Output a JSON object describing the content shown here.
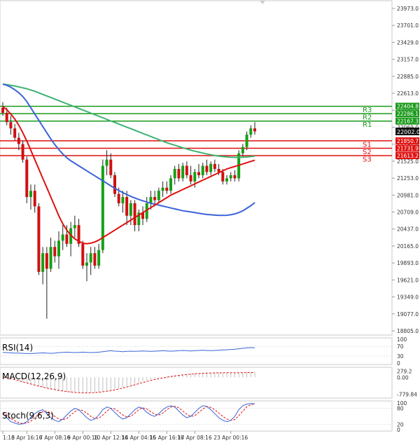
{
  "chart_data": {
    "type": "candlestick",
    "instrument_timeframe": "",
    "main": {
      "ylim": [
        18805,
        24150
      ],
      "ticks": [
        "23973.0",
        "23701.0",
        "23429.0",
        "23157.0",
        "22885.0",
        "22613.0",
        "22341.0",
        "22069.0",
        "21797.0",
        "21525.0",
        "21253.0",
        "20981.0",
        "20709.0",
        "20437.0",
        "20165.0",
        "19893.0",
        "19621.0",
        "19349.0",
        "19077.0",
        "18805.0"
      ],
      "current_price": "22002.0",
      "levels": [
        {
          "name": "R3",
          "value": 22404.8,
          "label": "22404.8",
          "color": "#1a9a1a"
        },
        {
          "name": "R2",
          "value": 22286.1,
          "label": "22286.1",
          "color": "#1a9a1a"
        },
        {
          "name": "R1",
          "value": 22167.3,
          "label": "22167.3",
          "color": "#1a9a1a"
        },
        {
          "name": "S1",
          "value": 21850.7,
          "label": "21850.7",
          "color": "#e01010"
        },
        {
          "name": "S2",
          "value": 21731.9,
          "label": "21731.9",
          "color": "#e01010"
        },
        {
          "name": "S3",
          "value": 21613.2,
          "label": "21613.2",
          "color": "#e01010"
        }
      ],
      "candles": [
        [
          22380,
          22470,
          22250,
          22300
        ],
        [
          22300,
          22380,
          22100,
          22150
        ],
        [
          22150,
          22250,
          21950,
          22050
        ],
        [
          22050,
          22120,
          21860,
          21900
        ],
        [
          21900,
          21980,
          21700,
          21800
        ],
        [
          21800,
          21850,
          21500,
          21550
        ],
        [
          21550,
          21600,
          20850,
          20950
        ],
        [
          20950,
          21150,
          20750,
          21050
        ],
        [
          21050,
          21150,
          20700,
          20800
        ],
        [
          20800,
          20850,
          19700,
          19750
        ],
        [
          19750,
          20150,
          19550,
          20050
        ],
        [
          20050,
          20150,
          19000,
          19800
        ],
        [
          19800,
          20300,
          19750,
          20150
        ],
        [
          20150,
          20250,
          19900,
          20000
        ],
        [
          20000,
          20400,
          19800,
          20250
        ],
        [
          20250,
          20500,
          20100,
          20350
        ],
        [
          20350,
          20500,
          20150,
          20200
        ],
        [
          20200,
          20550,
          20000,
          20450
        ],
        [
          20450,
          20650,
          20300,
          20500
        ],
        [
          20500,
          20600,
          20150,
          20200
        ],
        [
          20200,
          20250,
          19800,
          19850
        ],
        [
          19850,
          20050,
          19600,
          19900
        ],
        [
          19900,
          20150,
          19700,
          20050
        ],
        [
          20050,
          20150,
          19800,
          19850
        ],
        [
          19850,
          20200,
          19800,
          20100
        ],
        [
          20100,
          21550,
          20050,
          21450
        ],
        [
          21450,
          21700,
          21300,
          21550
        ],
        [
          21550,
          21650,
          21250,
          21300
        ],
        [
          21300,
          21350,
          20950,
          21000
        ],
        [
          21000,
          21100,
          20800,
          20850
        ],
        [
          20850,
          21050,
          20700,
          20950
        ],
        [
          20950,
          21050,
          20500,
          20650
        ],
        [
          20650,
          20900,
          20500,
          20850
        ],
        [
          20850,
          20900,
          20400,
          20500
        ],
        [
          20500,
          20750,
          20400,
          20700
        ],
        [
          20700,
          20800,
          20500,
          20600
        ],
        [
          20600,
          20950,
          20550,
          20850
        ],
        [
          20850,
          21050,
          20750,
          20950
        ],
        [
          20950,
          21050,
          20800,
          20900
        ],
        [
          20900,
          21100,
          20850,
          21050
        ],
        [
          21050,
          21200,
          20950,
          21100
        ],
        [
          21100,
          21200,
          21000,
          21050
        ],
        [
          21050,
          21300,
          21000,
          21250
        ],
        [
          21250,
          21450,
          21150,
          21400
        ],
        [
          21400,
          21480,
          21200,
          21250
        ],
        [
          21250,
          21500,
          21200,
          21450
        ],
        [
          21450,
          21520,
          21250,
          21300
        ],
        [
          21300,
          21450,
          21150,
          21200
        ],
        [
          21200,
          21400,
          21100,
          21350
        ],
        [
          21350,
          21480,
          21250,
          21300
        ],
        [
          21300,
          21500,
          21250,
          21450
        ],
        [
          21450,
          21550,
          21300,
          21350
        ],
        [
          21350,
          21520,
          21300,
          21480
        ],
        [
          21480,
          21550,
          21350,
          21400
        ],
        [
          21400,
          21480,
          21300,
          21350
        ],
        [
          21350,
          21400,
          21150,
          21200
        ],
        [
          21200,
          21300,
          21150,
          21250
        ],
        [
          21250,
          21350,
          21200,
          21300
        ],
        [
          21300,
          21380,
          21200,
          21250
        ],
        [
          21250,
          21700,
          21200,
          21650
        ],
        [
          21650,
          21800,
          21600,
          21750
        ],
        [
          21750,
          22000,
          21700,
          21950
        ],
        [
          21950,
          22100,
          21900,
          22050
        ],
        [
          22050,
          22150,
          21950,
          22002
        ]
      ],
      "ma_red": [
        22400,
        22350,
        22280,
        22200,
        22100,
        21980,
        21850,
        21700,
        21550,
        21400,
        21250,
        21100,
        20950,
        20800,
        20650,
        20520,
        20420,
        20340,
        20280,
        20240,
        20210,
        20200,
        20210,
        20230,
        20260,
        20300,
        20340,
        20380,
        20420,
        20460,
        20500,
        20540,
        20580,
        20620,
        20660,
        20700,
        20740,
        20780,
        20820,
        20860,
        20900,
        20940,
        20980,
        21010,
        21040,
        21070,
        21100,
        21130,
        21160,
        21190,
        21220,
        21250,
        21280,
        21310,
        21340,
        21370,
        21400,
        21420,
        21440,
        21460,
        21480,
        21500,
        21520,
        21540
      ],
      "ma_blue": [
        22760,
        22740,
        22710,
        22670,
        22620,
        22560,
        22480,
        22380,
        22280,
        22180,
        22080,
        21980,
        21880,
        21790,
        21710,
        21640,
        21580,
        21530,
        21490,
        21450,
        21410,
        21370,
        21330,
        21290,
        21250,
        21210,
        21170,
        21130,
        21090,
        21055,
        21020,
        20990,
        20960,
        20935,
        20910,
        20890,
        20870,
        20850,
        20835,
        20820,
        20805,
        20790,
        20775,
        20760,
        20745,
        20730,
        20720,
        20710,
        20700,
        20690,
        20680,
        20670,
        20665,
        20660,
        20655,
        20655,
        20658,
        20665,
        20680,
        20700,
        20730,
        20770,
        20810,
        20860
      ],
      "ma_green": [
        22760,
        22750,
        22740,
        22730,
        22715,
        22700,
        22685,
        22665,
        22645,
        22620,
        22595,
        22570,
        22545,
        22520,
        22495,
        22470,
        22445,
        22420,
        22395,
        22370,
        22345,
        22320,
        22295,
        22270,
        22245,
        22220,
        22195,
        22170,
        22145,
        22120,
        22095,
        22070,
        22045,
        22020,
        21995,
        21970,
        21945,
        21920,
        21895,
        21870,
        21845,
        21820,
        21800,
        21780,
        21760,
        21740,
        21720,
        21700,
        21685,
        21670,
        21655,
        21640,
        21628,
        21616,
        21606,
        21598,
        21592,
        21588,
        21586,
        21586,
        21588,
        21592,
        21598,
        21606
      ]
    },
    "x_ticks": [
      "1:16",
      "3 Apr 16:16",
      "7 Apr 08:16",
      "9 Apr 00:16",
      "10 Apr 12:16",
      "14 Apr 04:16",
      "15 Apr 16:16",
      "17 Apr 08:16",
      "23 Apr 00:16"
    ],
    "rsi": {
      "label": "RSI(14)",
      "ticks": [
        "100",
        "70",
        "30",
        "0"
      ],
      "ylim": [
        0,
        100
      ],
      "values": [
        45,
        44,
        43,
        42,
        42,
        41,
        40,
        40,
        41,
        42,
        43,
        42,
        41,
        42,
        44,
        45,
        46,
        45,
        44,
        45,
        46,
        45,
        44,
        45,
        46,
        48,
        50,
        52,
        50,
        49,
        48,
        49,
        50,
        49,
        50,
        51,
        50,
        49,
        50,
        51,
        52,
        51,
        50,
        51,
        52,
        53,
        52,
        51,
        52,
        53,
        54,
        53,
        52,
        53,
        54,
        55,
        56,
        57,
        58,
        60,
        62,
        64,
        65,
        64
      ]
    },
    "macd": {
      "label": "MACD(12,26,9)",
      "ticks": [
        "279.2",
        "0.00",
        "-779.84"
      ],
      "ylim": [
        -900,
        400
      ],
      "hist": [
        20,
        -30,
        -80,
        -130,
        -180,
        -230,
        -280,
        -330,
        -380,
        -430,
        -470,
        -510,
        -550,
        -590,
        -620,
        -650,
        -680,
        -700,
        -715,
        -725,
        -730,
        -728,
        -720,
        -705,
        -685,
        -660,
        -630,
        -595,
        -555,
        -510,
        -460,
        -410,
        -355,
        -300,
        -245,
        -190,
        -140,
        -95,
        -55,
        -20,
        10,
        40,
        70,
        95,
        120,
        140,
        160,
        175,
        190,
        200,
        210,
        215,
        220,
        222,
        223,
        222,
        220,
        218,
        216,
        218,
        222,
        228,
        235,
        240
      ],
      "signal": [
        10,
        -20,
        -60,
        -110,
        -160,
        -210,
        -260,
        -310,
        -360,
        -405,
        -450,
        -495,
        -535,
        -570,
        -605,
        -635,
        -660,
        -680,
        -700,
        -712,
        -720,
        -722,
        -718,
        -708,
        -692,
        -670,
        -645,
        -615,
        -580,
        -540,
        -495,
        -448,
        -398,
        -346,
        -292,
        -240,
        -190,
        -143,
        -100,
        -62,
        -28,
        5,
        35,
        62,
        88,
        110,
        130,
        148,
        164,
        176,
        186,
        194,
        200,
        205,
        208,
        210,
        211,
        211,
        211,
        212,
        214,
        217,
        221,
        226
      ]
    },
    "stoch": {
      "label": "Stoch(9,6,3)",
      "ticks": [
        "100",
        "80",
        "20",
        "0"
      ],
      "ylim": [
        0,
        100
      ],
      "k": [
        60,
        45,
        30,
        25,
        20,
        22,
        30,
        45,
        60,
        70,
        75,
        60,
        45,
        35,
        30,
        40,
        55,
        70,
        80,
        75,
        60,
        45,
        35,
        40,
        55,
        75,
        85,
        80,
        65,
        50,
        40,
        45,
        60,
        75,
        85,
        80,
        65,
        55,
        50,
        60,
        75,
        85,
        90,
        85,
        70,
        55,
        45,
        50,
        65,
        80,
        90,
        88,
        75,
        60,
        45,
        35,
        30,
        35,
        50,
        75,
        90,
        96,
        98,
        97
      ],
      "d": [
        65,
        55,
        42,
        33,
        26,
        23,
        25,
        32,
        45,
        58,
        68,
        70,
        62,
        50,
        40,
        37,
        42,
        55,
        68,
        75,
        72,
        62,
        50,
        42,
        43,
        55,
        70,
        80,
        78,
        68,
        55,
        48,
        50,
        62,
        75,
        82,
        78,
        68,
        58,
        55,
        62,
        75,
        85,
        88,
        82,
        70,
        58,
        50,
        53,
        65,
        78,
        86,
        84,
        75,
        62,
        50,
        40,
        35,
        38,
        52,
        70,
        86,
        94,
        97
      ]
    }
  }
}
